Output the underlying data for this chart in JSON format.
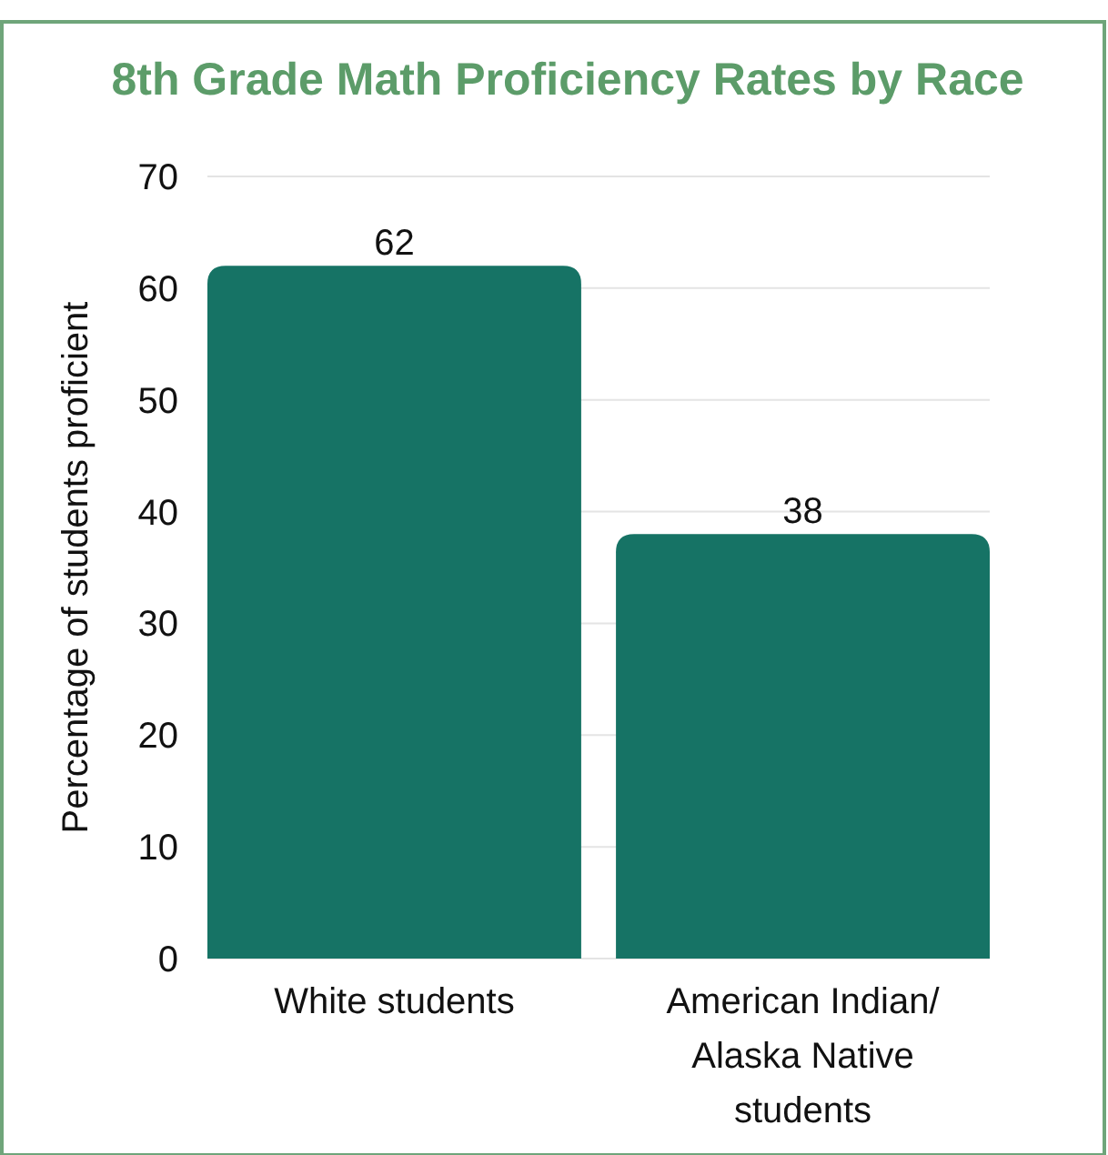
{
  "chart_data": {
    "type": "bar",
    "title": "8th Grade Math Proficiency Rates by Race",
    "ylabel": "Percentage of students proficient",
    "categories": [
      "White students",
      "American Indian/ Alaska Native students"
    ],
    "values": [
      62,
      38
    ],
    "color": "#167365",
    "data_labels": true,
    "ylim": [
      0,
      70
    ],
    "yticks": [
      0,
      10,
      20,
      30,
      40,
      50,
      60,
      70
    ],
    "grid": "y"
  }
}
